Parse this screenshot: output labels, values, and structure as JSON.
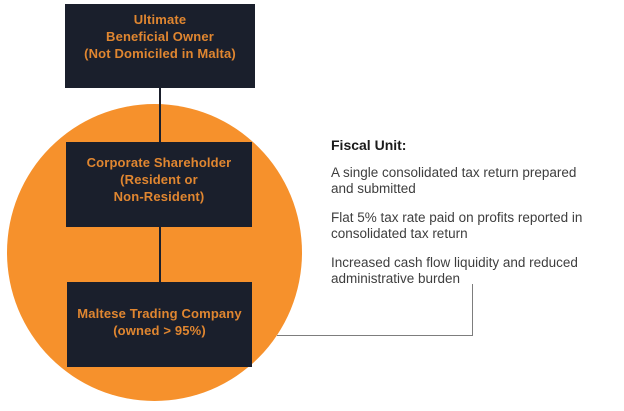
{
  "diagram": {
    "boxes": {
      "ubo": {
        "lines": [
          "Ultimate",
          "Beneficial Owner",
          "(Not Domiciled in Malta)"
        ]
      },
      "corporate_shareholder": {
        "lines": [
          "Corporate Shareholder",
          "(Resident or",
          "Non-Resident)"
        ]
      },
      "maltese_trading_company": {
        "lines": [
          "Maltese Trading Company",
          "(owned > 95%)"
        ]
      }
    }
  },
  "fiscal_unit": {
    "heading": "Fiscal Unit:",
    "points": [
      {
        "lines": [
          "A single consolidated tax return prepared",
          "and submitted"
        ]
      },
      {
        "lines": [
          "Flat 5% tax rate paid on profits reported in",
          "consolidated tax return"
        ]
      },
      {
        "lines": [
          "Increased cash flow liquidity and reduced",
          "administrative burden"
        ]
      }
    ]
  },
  "colors": {
    "circle_orange": "#F6912C",
    "box_bg": "#1A1F2C",
    "box_text": "#E08630",
    "heading_text": "#1B1B1B",
    "body_text": "#3E3E3E",
    "line_gray": "#7D7D7D"
  }
}
